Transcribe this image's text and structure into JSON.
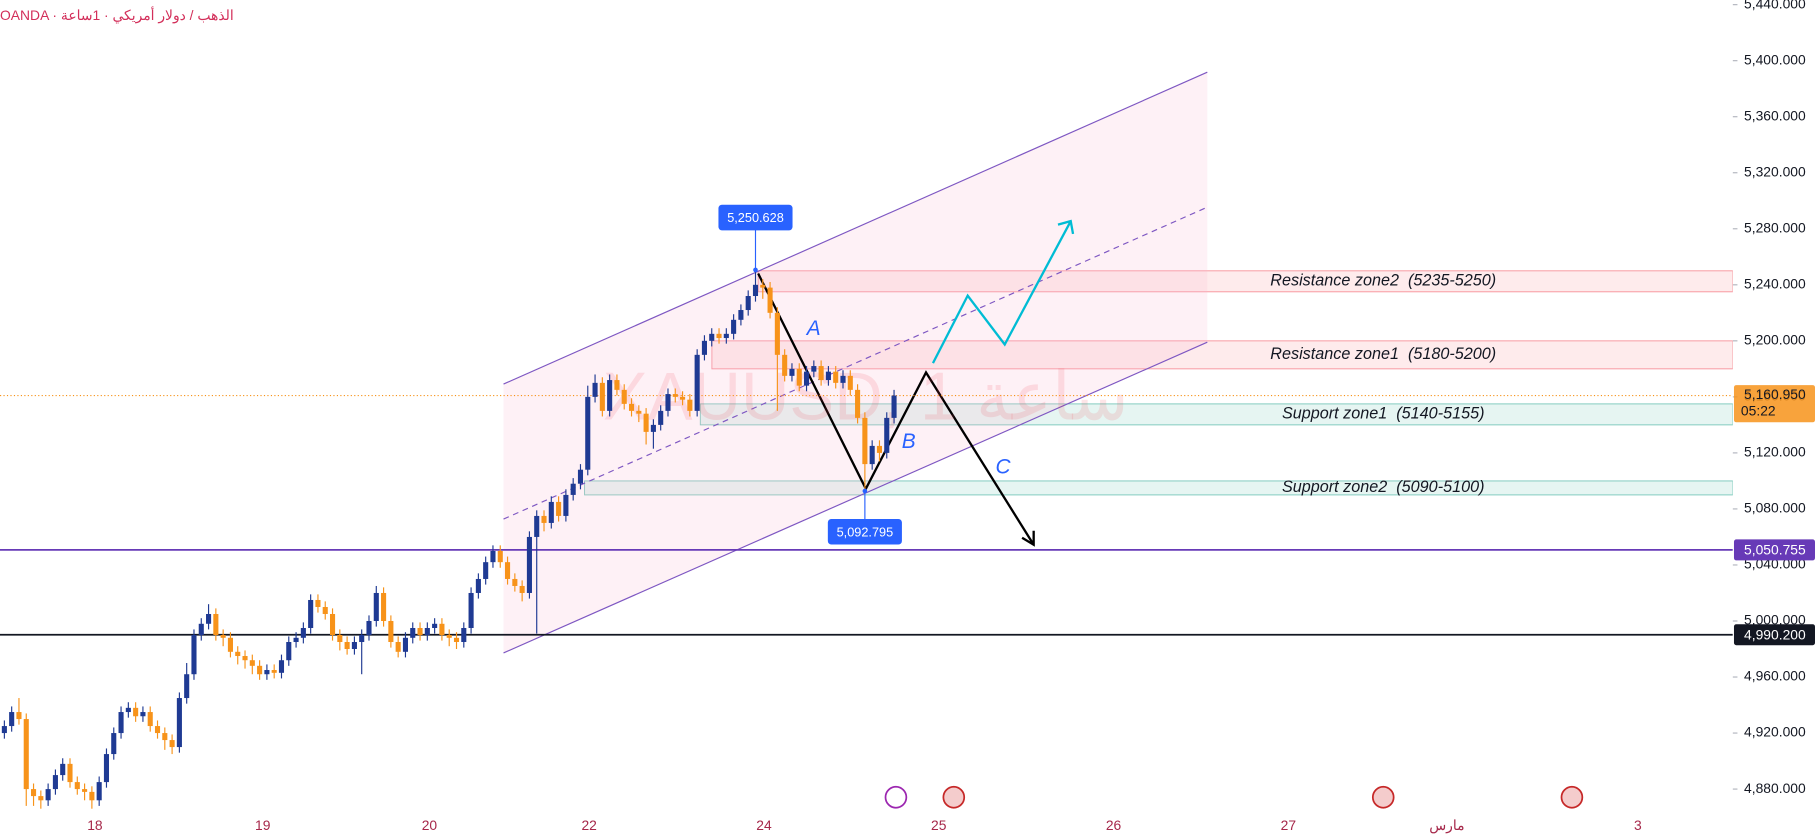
{
  "chart_data": {
    "type": "candlestick",
    "title": "OANDA · الذهب / دولار أمريكي · 1ساعة",
    "watermark": "XAUUSD, 1 ساعة",
    "up_color": "#1f3a93",
    "down_color": "#f7931a",
    "open": [
      4920,
      4925,
      4935,
      4930,
      4880,
      4875,
      4872,
      4880,
      4890,
      4898,
      4885,
      4880,
      4878,
      4872,
      4885,
      4905,
      4920,
      4935,
      4938,
      4932,
      4935,
      4925,
      4920,
      4915,
      4910,
      4945,
      4962,
      4990,
      4998,
      5005,
      4990,
      4988,
      4978,
      4975,
      4972,
      4968,
      4962,
      4965,
      4963,
      4972,
      4985,
      4988,
      4995,
      5015,
      5010,
      5005,
      4990,
      4985,
      4980,
      4985,
      4990,
      5000,
      5020,
      5000,
      4985,
      4978,
      4988,
      4995,
      4990,
      4995,
      4998,
      4990,
      4988,
      4985,
      4995,
      5020,
      5030,
      5042,
      5050,
      5042,
      5030,
      5025,
      5020,
      5060,
      5075,
      5070,
      5085,
      5075,
      5090,
      5098,
      5108,
      5160,
      5170,
      5150,
      5172,
      5165,
      5155,
      5150,
      5148,
      5135,
      5140,
      5150,
      5162,
      5160,
      5158,
      5150,
      5190,
      5200,
      5205,
      5202,
      5205,
      5215,
      5222,
      5232,
      5240,
      5238,
      5220,
      5190,
      5175,
      5180,
      5168,
      5178,
      5182,
      5172,
      5178,
      5170,
      5175,
      5165,
      5145,
      5112,
      5125,
      5120,
      5145
    ],
    "high": [
      4929,
      4939,
      4945,
      4934,
      4884,
      4879,
      4884,
      4894,
      4902,
      4902,
      4889,
      4884,
      4882,
      4889,
      4909,
      4924,
      4939,
      4942,
      4942,
      4939,
      4939,
      4929,
      4924,
      4919,
      4949,
      4970,
      4994,
      5002,
      5012,
      5009,
      4994,
      4992,
      4982,
      4979,
      4976,
      4972,
      4969,
      4969,
      4976,
      4989,
      4992,
      4999,
      5019,
      5019,
      5014,
      5009,
      4994,
      4989,
      4989,
      4994,
      5004,
      5025,
      5024,
      5004,
      4989,
      4992,
      4999,
      4999,
      4999,
      5002,
      5002,
      4994,
      4992,
      4999,
      5024,
      5034,
      5046,
      5054,
      5054,
      5046,
      5034,
      5029,
      5064,
      5079,
      5079,
      5089,
      5089,
      5094,
      5102,
      5112,
      5168,
      5176,
      5174,
      5176,
      5176,
      5169,
      5159,
      5154,
      5152,
      5144,
      5154,
      5166,
      5166,
      5164,
      5162,
      5194,
      5204,
      5209,
      5209,
      5209,
      5219,
      5226,
      5236,
      5250.628,
      5244,
      5242,
      5224,
      5194,
      5184,
      5184,
      5182,
      5186,
      5186,
      5182,
      5182,
      5179,
      5179,
      5169,
      5149,
      5129,
      5129,
      5149,
      5165
    ],
    "low": [
      4916,
      4921,
      4926,
      4868,
      4868,
      4866,
      4868,
      4876,
      4886,
      4881,
      4876,
      4872,
      4866,
      4868,
      4881,
      4901,
      4916,
      4931,
      4928,
      4928,
      4921,
      4916,
      4908,
      4905,
      4906,
      4941,
      4958,
      4986,
      4994,
      4986,
      4982,
      4974,
      4969,
      4966,
      4962,
      4958,
      4958,
      4959,
      4959,
      4968,
      4981,
      4984,
      4991,
      5006,
      5001,
      4986,
      4979,
      4976,
      4976,
      4962,
      4986,
      4996,
      4996,
      4981,
      4974,
      4974,
      4984,
      4986,
      4986,
      4991,
      4986,
      4982,
      4980,
      4981,
      4991,
      5016,
      5026,
      5038,
      5038,
      5026,
      5021,
      5014,
      5016,
      4991,
      5064,
      5066,
      5071,
      5071,
      5086,
      5094,
      5104,
      5156,
      5146,
      5146,
      5161,
      5151,
      5146,
      5142,
      5126,
      5123,
      5136,
      5146,
      5156,
      5154,
      5146,
      5146,
      5186,
      5196,
      5198,
      5198,
      5201,
      5211,
      5218,
      5228,
      5230,
      5216,
      5150,
      5171,
      5171,
      5164,
      5164,
      5174,
      5168,
      5168,
      5166,
      5166,
      5161,
      5141,
      5092.795,
      5108,
      5114,
      5116,
      5141
    ],
    "close": [
      4925,
      4935,
      4930,
      4880,
      4875,
      4872,
      4880,
      4890,
      4898,
      4885,
      4880,
      4878,
      4872,
      4885,
      4905,
      4920,
      4935,
      4938,
      4932,
      4935,
      4925,
      4920,
      4915,
      4910,
      4945,
      4962,
      4990,
      4998,
      5005,
      4990,
      4988,
      4978,
      4975,
      4972,
      4968,
      4962,
      4965,
      4963,
      4972,
      4985,
      4988,
      4995,
      5015,
      5010,
      5005,
      4990,
      4985,
      4980,
      4985,
      4990,
      5000,
      5020,
      5000,
      4985,
      4978,
      4988,
      4995,
      4990,
      4995,
      4998,
      4990,
      4988,
      4985,
      4995,
      5020,
      5030,
      5042,
      5050,
      5042,
      5030,
      5025,
      5020,
      5060,
      5075,
      5070,
      5085,
      5075,
      5090,
      5098,
      5108,
      5160,
      5170,
      5150,
      5172,
      5165,
      5155,
      5150,
      5148,
      5135,
      5140,
      5150,
      5162,
      5160,
      5158,
      5150,
      5190,
      5200,
      5205,
      5202,
      5205,
      5215,
      5222,
      5232,
      5240,
      5238,
      5220,
      5190,
      5175,
      5180,
      5168,
      5178,
      5182,
      5172,
      5178,
      5170,
      5175,
      5165,
      5145,
      5112,
      5125,
      5120,
      5145,
      5160.95
    ],
    "ylim": [
      4861.7,
      5443.32
    ],
    "yticks": [
      {
        "value": 4880,
        "label": "4,880.000"
      },
      {
        "value": 4920,
        "label": "4,920.000"
      },
      {
        "value": 4960,
        "label": "4,960.000"
      },
      {
        "value": 5000,
        "label": "5,000.000"
      },
      {
        "value": 5040,
        "label": "5,040.000"
      },
      {
        "value": 5080,
        "label": "5,080.000"
      },
      {
        "value": 5120,
        "label": "5,120.000"
      },
      {
        "value": 5160,
        "label": "5,160.000"
      },
      {
        "value": 5200,
        "label": "5,200.000"
      },
      {
        "value": 5240,
        "label": "5,240.000"
      },
      {
        "value": 5280,
        "label": "5,280.000"
      },
      {
        "value": 5320,
        "label": "5,320.000"
      },
      {
        "value": 5360,
        "label": "5,360.000"
      },
      {
        "value": 5400,
        "label": "5,400.000"
      },
      {
        "value": 5440,
        "label": "5,440.000"
      }
    ],
    "x_labels": [
      "18",
      "19",
      "20",
      "22",
      "24",
      "25",
      "26",
      "27",
      "مارس",
      "3"
    ],
    "zones": [
      {
        "label": "Resistance zone2  (5235-5250)",
        "low": 5235,
        "high": 5250,
        "color": "#f23645"
      },
      {
        "label": "Resistance zone1  (5180-5200)",
        "low": 5180,
        "high": 5200,
        "color": "#f23645"
      },
      {
        "label": "Support zone1  (5140-5155)",
        "low": 5140,
        "high": 5155,
        "color": "#089981"
      },
      {
        "label": "Support zone2  (5090-5100)",
        "low": 5090,
        "high": 5100,
        "color": "#089981"
      }
    ],
    "price_lines": [
      {
        "value": 5050.755,
        "label": "5,050.755",
        "color": "#673ab7"
      },
      {
        "value": 4990.2,
        "label": "4,990.200",
        "color": "#131722"
      }
    ],
    "last_price": {
      "value": 5160.95,
      "label": "5,160.950",
      "countdown": "05:22",
      "color": "#f7931a"
    },
    "markers": [
      {
        "value": 5250.628,
        "label": "5,250.628",
        "at": "high"
      },
      {
        "value": 5092.795,
        "label": "5,092.795",
        "at": "low"
      }
    ],
    "wave_labels": [
      "A",
      "B",
      "C"
    ]
  }
}
